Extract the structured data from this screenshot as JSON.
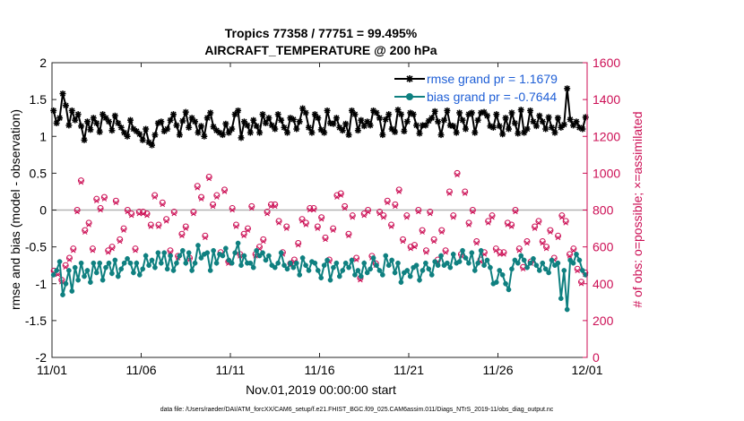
{
  "chart_data": {
    "type": "line",
    "title_line1": "Tropics 77358 / 77751 = 99.495%",
    "title_line2": "AIRCRAFT_TEMPERATURE @ 200 hPa",
    "xlabel": "Nov.01,2019 00:00:00 start",
    "ylabel_left": "rmse and bias (model - observation)",
    "ylabel_right": "# of obs: o=possible; ×=assimilated",
    "footer": "data file: /Users/raeder/DAI/ATM_forcXX/CAM6_setup/f.e21.FHIST_BGC.f09_025.CAM6assim.011/Diags_NTrS_2019-11/obs_diag_output.nc",
    "x_tick_labels": [
      "11/01",
      "11/06",
      "11/11",
      "11/16",
      "11/21",
      "11/26",
      "12/01"
    ],
    "xlim": [
      0,
      30
    ],
    "ylim_left": [
      -2,
      2
    ],
    "y_left_ticks": [
      "-2",
      "-1.5",
      "-1",
      "-0.5",
      "0",
      "0.5",
      "1",
      "1.5",
      "2"
    ],
    "ylim_right": [
      0,
      1600
    ],
    "y_right_ticks": [
      "0",
      "200",
      "400",
      "600",
      "800",
      "1000",
      "1200",
      "1400",
      "1600"
    ],
    "colors": {
      "rmse": "#000000",
      "bias": "#0f8080",
      "obs": "#cc0f55",
      "zero_line": "#b3b3b3"
    },
    "legend": {
      "rmse": "rmse grand pr = 1.1679",
      "bias": "bias grand pr = -0.7644",
      "placement": "top-right"
    },
    "series": [
      {
        "name": "rmse",
        "values": [
          1.35,
          1.18,
          1.25,
          1.58,
          1.42,
          1.15,
          1.35,
          1.22,
          1.3,
          1.14,
          0.95,
          1.2,
          1.09,
          1.25,
          1.18,
          1.06,
          1.3,
          1.25,
          1.2,
          1.08,
          1.28,
          1.18,
          1.12,
          1.05,
          1.0,
          1.22,
          1.1,
          1.07,
          1.03,
          0.95,
          1.1,
          0.92,
          0.88,
          1.02,
          1.18,
          1.2,
          1.07,
          1.1,
          1.22,
          1.3,
          1.15,
          1.02,
          1.21,
          1.33,
          1.12,
          1.25,
          1.2,
          1.05,
          1.14,
          1.0,
          1.25,
          1.32,
          1.13,
          1.08,
          1.05,
          1.02,
          1.17,
          1.05,
          1.1,
          1.3,
          1.35,
          0.98,
          1.2,
          1.15,
          1.05,
          1.22,
          1.14,
          1.05,
          1.3,
          1.18,
          1.25,
          1.15,
          1.1,
          1.3,
          1.22,
          1.12,
          1.05,
          1.25,
          1.23,
          1.1,
          1.2,
          1.38,
          1.32,
          1.12,
          1.05,
          1.3,
          1.25,
          1.09,
          1.05,
          1.35,
          1.18,
          1.17,
          1.25,
          1.12,
          1.08,
          1.17,
          1.02,
          1.35,
          1.3,
          1.08,
          1.22,
          1.14,
          1.2,
          1.15,
          1.35,
          1.32,
          1.25,
          1.02,
          1.23,
          1.3,
          1.1,
          1.06,
          1.36,
          1.3,
          1.07,
          1.2,
          1.32,
          1.3,
          1.15,
          1.04,
          1.15,
          1.15,
          1.21,
          1.25,
          1.34,
          1.2,
          1.02,
          1.22,
          1.35,
          1.15,
          1.14,
          1.05,
          1.32,
          1.22,
          1.1,
          1.3,
          1.32,
          1.05,
          1.22,
          1.32,
          1.33,
          1.28,
          1.14,
          1.12,
          1.3,
          1.14,
          1.03,
          1.25,
          1.1,
          1.32,
          1.18,
          1.04,
          1.36,
          1.05,
          1.1,
          1.35,
          1.2,
          1.14,
          1.28,
          1.2,
          1.1,
          1.26,
          1.12,
          1.05,
          1.25,
          1.12,
          1.16,
          1.65,
          1.23,
          1.15,
          1.2,
          1.12,
          1.1,
          1.26
        ]
      },
      {
        "name": "bias",
        "values": [
          -0.88,
          -0.82,
          -0.7,
          -1.15,
          -1.0,
          -0.82,
          -1.1,
          -0.78,
          -0.95,
          -0.72,
          -0.9,
          -0.82,
          -0.98,
          -0.72,
          -0.85,
          -0.72,
          -0.95,
          -0.78,
          -0.72,
          -0.86,
          -0.68,
          -0.9,
          -0.8,
          -0.72,
          -0.66,
          -0.72,
          -0.85,
          -0.72,
          -0.88,
          -0.8,
          -0.62,
          -0.75,
          -0.68,
          -0.78,
          -0.58,
          -0.72,
          -0.58,
          -0.8,
          -0.62,
          -0.82,
          -0.72,
          -0.62,
          -0.55,
          -0.72,
          -0.58,
          -0.82,
          -0.72,
          -0.48,
          -0.65,
          -0.6,
          -0.58,
          -0.82,
          -0.55,
          -0.72,
          -0.6,
          -0.62,
          -0.52,
          -0.68,
          -0.72,
          -0.58,
          -0.45,
          -0.75,
          -0.62,
          -0.72,
          -0.72,
          -0.78,
          -0.55,
          -0.62,
          -0.58,
          -0.68,
          -0.62,
          -0.75,
          -0.78,
          -0.72,
          -0.58,
          -0.75,
          -0.8,
          -0.72,
          -0.78,
          -0.72,
          -0.88,
          -0.65,
          -0.75,
          -0.82,
          -0.7,
          -0.72,
          -0.82,
          -0.92,
          -0.75,
          -0.68,
          -0.95,
          -0.78,
          -0.72,
          -0.9,
          -0.82,
          -0.72,
          -0.78,
          -0.68,
          -0.88,
          -0.82,
          -0.9,
          -0.72,
          -0.85,
          -0.8,
          -0.65,
          -0.75,
          -0.82,
          -0.88,
          -0.62,
          -0.75,
          -0.68,
          -0.85,
          -0.72,
          -0.98,
          -0.85,
          -0.82,
          -0.9,
          -0.78,
          -0.75,
          -0.95,
          -0.82,
          -0.72,
          -0.8,
          -0.88,
          -0.7,
          -0.75,
          -0.62,
          -0.75,
          -0.72,
          -0.78,
          -0.6,
          -0.72,
          -0.7,
          -0.55,
          -0.65,
          -0.72,
          -0.58,
          -0.82,
          -0.72,
          -0.55,
          -0.75,
          -0.68,
          -0.78,
          -1.0,
          -0.98,
          -0.82,
          -0.88,
          -1.0,
          -1.08,
          -0.8,
          -0.68,
          -0.72,
          -0.62,
          -0.68,
          -0.78,
          -0.72,
          -0.66,
          -0.75,
          -0.82,
          -0.72,
          -0.8,
          -0.85,
          -0.68,
          -0.75,
          -0.72,
          -1.2,
          -0.82,
          -1.35,
          -0.68,
          -0.72,
          -0.6,
          -0.68,
          -0.82,
          -0.88
        ]
      },
      {
        "name": "obs_possible",
        "values": [
          470,
          460,
          420,
          500,
          540,
          590,
          800,
          960,
          690,
          730,
          590,
          860,
          810,
          870,
          580,
          600,
          850,
          640,
          700,
          800,
          780,
          590,
          790,
          790,
          780,
          720,
          880,
          720,
          840,
          750,
          580,
          790,
          550,
          670,
          710,
          540,
          790,
          930,
          870,
          660,
          980,
          830,
          880,
          570,
          910,
          520,
          810,
          720,
          560,
          670,
          700,
          820,
          560,
          600,
          640,
          790,
          830,
          830,
          740,
          570,
          710,
          510,
          530,
          620,
          750,
          730,
          810,
          810,
          710,
          760,
          650,
          530,
          700,
          880,
          890,
          820,
          670,
          770,
          540,
          430,
          780,
          800,
          550,
          510,
          790,
          770,
          850,
          720,
          830,
          910,
          640,
          770,
          600,
          610,
          800,
          690,
          580,
          790,
          640,
          530,
          690,
          580,
          900,
          770,
          1000,
          560,
          900,
          730,
          800,
          630,
          530,
          570,
          740,
          770,
          590,
          570,
          570,
          730,
          720,
          800,
          590,
          490,
          630,
          520,
          710,
          740,
          630,
          600,
          690,
          540,
          660,
          770,
          740,
          560,
          590,
          480,
          410,
          460
        ]
      },
      {
        "name": "obs_assimilated",
        "values": [
          460,
          450,
          410,
          490,
          530,
          580,
          790,
          950,
          680,
          720,
          580,
          850,
          800,
          860,
          570,
          590,
          840,
          630,
          690,
          790,
          770,
          580,
          780,
          780,
          770,
          710,
          870,
          710,
          830,
          740,
          570,
          780,
          540,
          660,
          700,
          530,
          780,
          920,
          860,
          650,
          970,
          820,
          870,
          560,
          900,
          510,
          800,
          710,
          550,
          660,
          690,
          810,
          550,
          590,
          630,
          780,
          820,
          820,
          730,
          560,
          700,
          500,
          520,
          610,
          740,
          720,
          800,
          800,
          700,
          750,
          640,
          520,
          690,
          870,
          880,
          810,
          660,
          760,
          530,
          420,
          770,
          790,
          540,
          500,
          780,
          760,
          840,
          710,
          820,
          900,
          630,
          760,
          590,
          600,
          790,
          680,
          570,
          780,
          630,
          520,
          680,
          570,
          890,
          760,
          990,
          550,
          890,
          720,
          790,
          620,
          520,
          560,
          730,
          760,
          580,
          560,
          560,
          720,
          710,
          790,
          580,
          480,
          620,
          510,
          700,
          730,
          620,
          590,
          680,
          530,
          650,
          760,
          730,
          550,
          580,
          470,
          400,
          450
        ]
      }
    ]
  }
}
